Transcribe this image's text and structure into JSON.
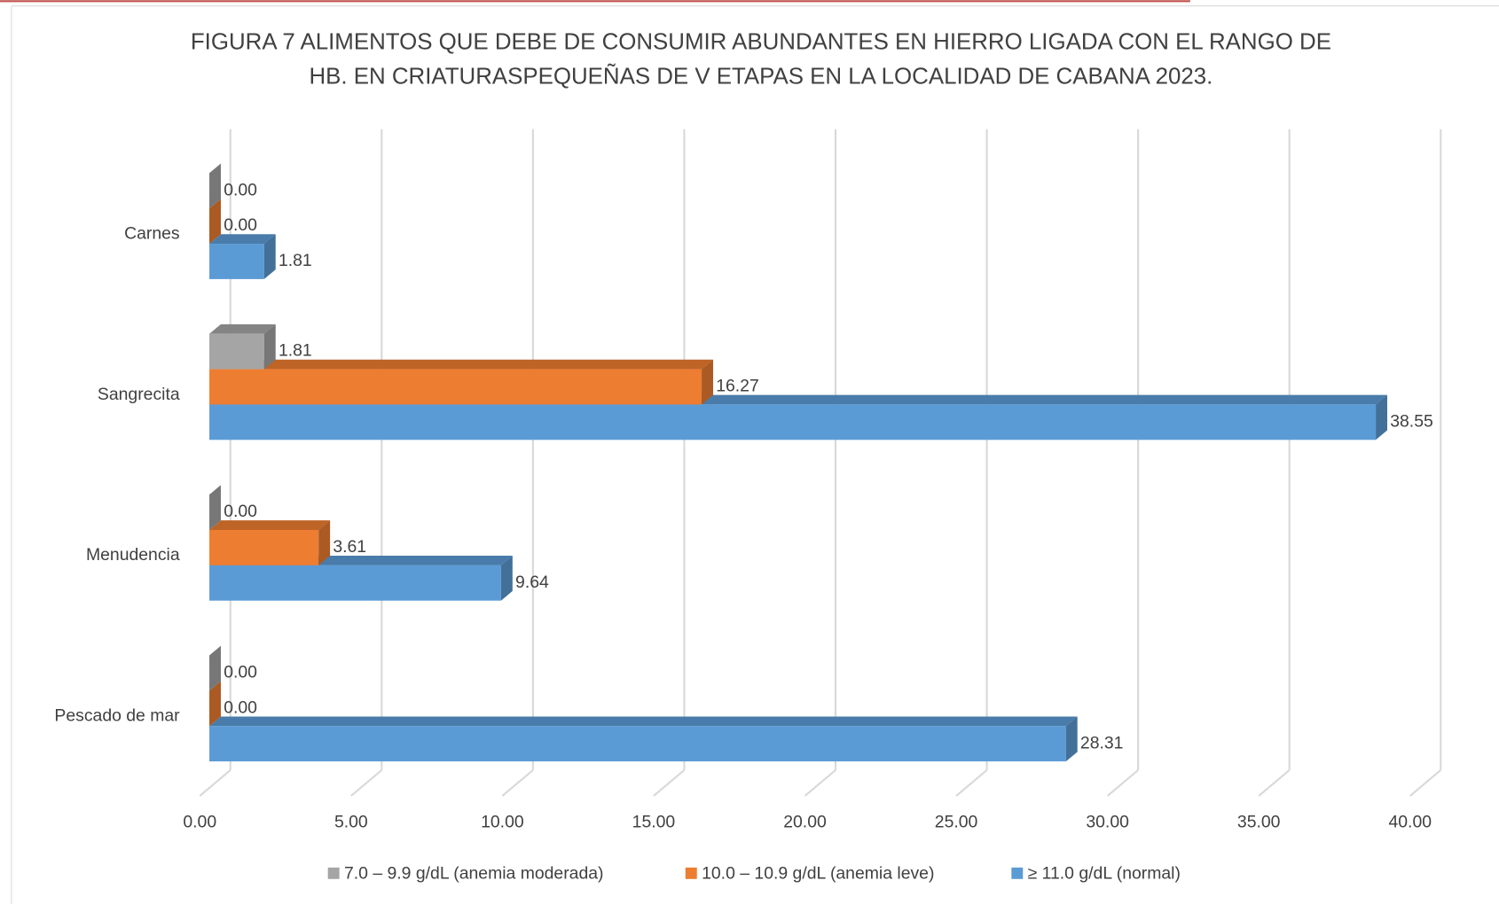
{
  "chart_data": {
    "type": "bar3d-horizontal",
    "title": [
      "FIGURA 7 ALIMENTOS QUE DEBE DE CONSUMIR ABUNDANTES EN HIERRO LIGADA CON EL RANGO DE",
      "HB. EN CRIATURASPEQUEÑAS DE V ETAPAS EN LA LOCALIDAD DE CABANA 2023."
    ],
    "categories": [
      "Carnes",
      "Sangrecita",
      "Menudencia",
      "Pescado de mar"
    ],
    "series": [
      {
        "name": "7.0 – 9.9 g/dL (anemia moderada)",
        "color": "#a5a5a5",
        "values": [
          0,
          1.81,
          0,
          0
        ],
        "value_labels": [
          "0.00",
          "1.81",
          "0.00",
          "0.00"
        ]
      },
      {
        "name": "10.0 – 10.9 g/dL (anemia leve)",
        "color": "#ed7d31",
        "values": [
          0,
          16.27,
          3.61,
          0
        ],
        "value_labels": [
          "0.00",
          "16.27",
          "3.61",
          "0.00"
        ]
      },
      {
        "name": "≥ 11.0 g/dL (normal)",
        "color": "#5b9bd5",
        "values": [
          1.81,
          38.55,
          9.64,
          28.31
        ],
        "value_labels": [
          "1.81",
          "38.55",
          "9.64",
          "28.31"
        ]
      }
    ],
    "xlim": [
      0,
      40
    ],
    "xticks": [
      {
        "value": 0,
        "label": "0.00"
      },
      {
        "value": 5,
        "label": "5.00"
      },
      {
        "value": 10,
        "label": "10.00"
      },
      {
        "value": 15,
        "label": "15.00"
      },
      {
        "value": 20,
        "label": "20.00"
      },
      {
        "value": 25,
        "label": "25.00"
      },
      {
        "value": 30,
        "label": "30.00"
      },
      {
        "value": 35,
        "label": "35.00"
      },
      {
        "value": 40,
        "label": "40.00"
      }
    ],
    "grid": true,
    "legend": "bottom"
  }
}
